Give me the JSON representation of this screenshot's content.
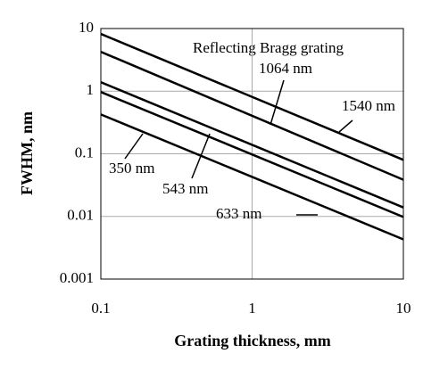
{
  "chart_data": {
    "type": "line",
    "x_label": "Grating thickness, mm",
    "y_label": "FWHM, nm",
    "annotation": "Reflecting Bragg grating",
    "x": [
      0.1,
      10
    ],
    "series": [
      {
        "name": "1540 nm",
        "color": "#000000",
        "values": [
          8.2,
          0.08
        ]
      },
      {
        "name": "1064 nm",
        "color": "#000000",
        "values": [
          4.25,
          0.0385
        ]
      },
      {
        "name": "633 nm",
        "color": "#000000",
        "values": [
          1.39,
          0.0139
        ]
      },
      {
        "name": "543 nm",
        "color": "#000000",
        "values": [
          0.97,
          0.0098
        ]
      },
      {
        "name": "350 nm",
        "color": "#000000",
        "values": [
          0.425,
          0.0043
        ]
      }
    ],
    "xlim": [
      0.1,
      10
    ],
    "xticks": [
      0.1,
      1,
      10
    ],
    "ylim": [
      0.001,
      10
    ],
    "yticks": [
      0.001,
      0.01,
      0.1,
      1,
      10
    ],
    "xlog": true,
    "ylog": true,
    "grid": true
  }
}
